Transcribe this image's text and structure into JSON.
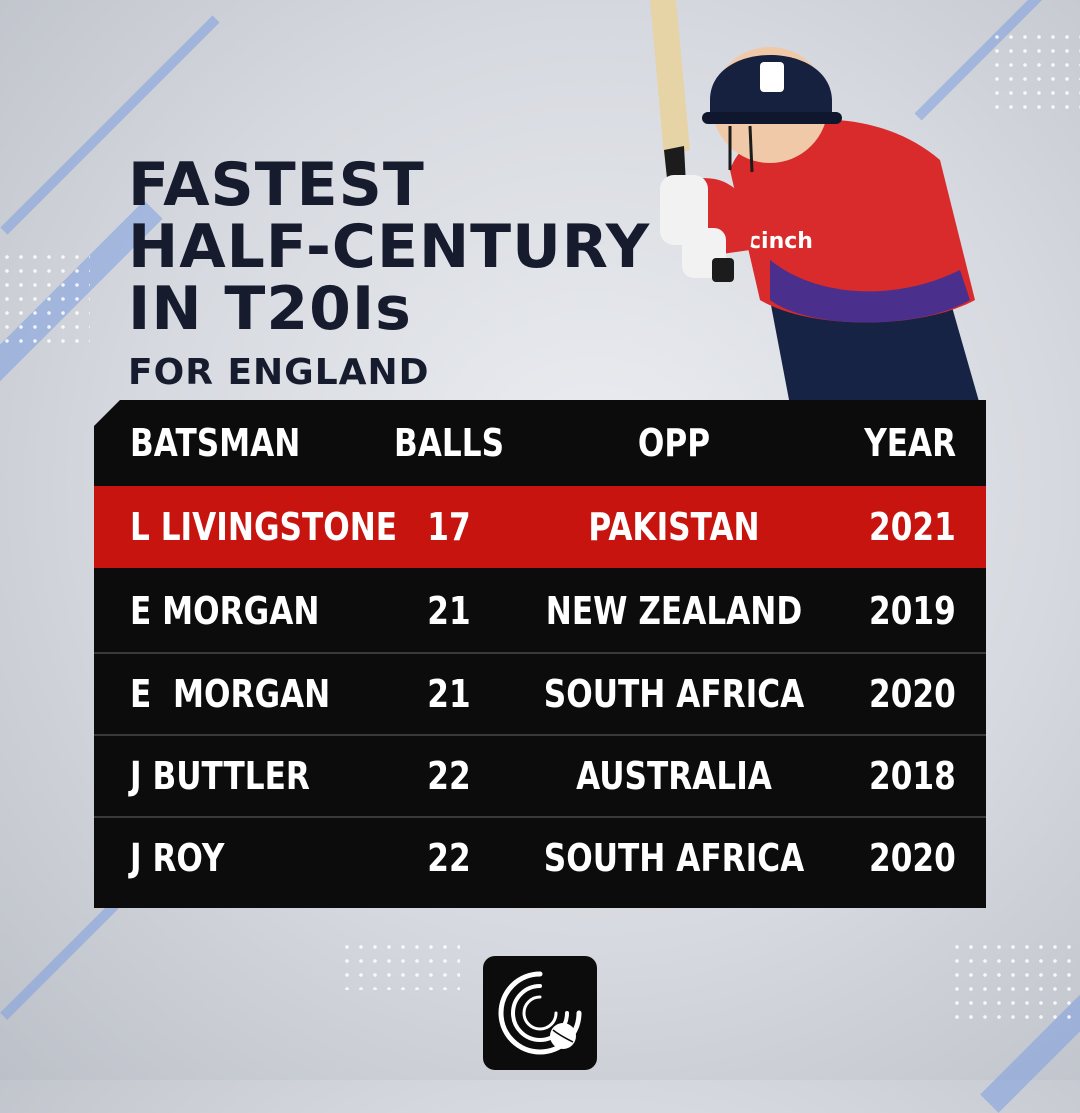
{
  "title": {
    "lines": [
      "FASTEST",
      "HALF-CENTURY",
      "IN T20Is"
    ],
    "subtitle": "FOR ENGLAND"
  },
  "table": {
    "headers": {
      "batsman": "BATSMAN",
      "balls": "BALLS",
      "opp": "OPP",
      "year": "YEAR"
    },
    "rows": [
      {
        "batsman": "L LIVINGSTONE",
        "balls": "17",
        "opp": "PAKISTAN",
        "year": "2021",
        "highlight": true
      },
      {
        "batsman": "E MORGAN",
        "balls": "21",
        "opp": "NEW ZEALAND",
        "year": "2019"
      },
      {
        "batsman": "E  MORGAN",
        "balls": "21",
        "opp": "SOUTH AFRICA",
        "year": "2020"
      },
      {
        "batsman": "J BUTTLER",
        "balls": "22",
        "opp": "AUSTRALIA",
        "year": "2018"
      },
      {
        "batsman": "J ROY",
        "balls": "22",
        "opp": "SOUTH AFRICA",
        "year": "2020"
      }
    ]
  },
  "player": {
    "shirt_text": "cinch"
  },
  "colors": {
    "title": "#161b2e",
    "table_bg": "#0c0c0c",
    "highlight_row": "#c8140f",
    "stripe_accent": "#7e9ee0"
  },
  "icons": {
    "logo": "cricket-ball-logo-icon"
  }
}
